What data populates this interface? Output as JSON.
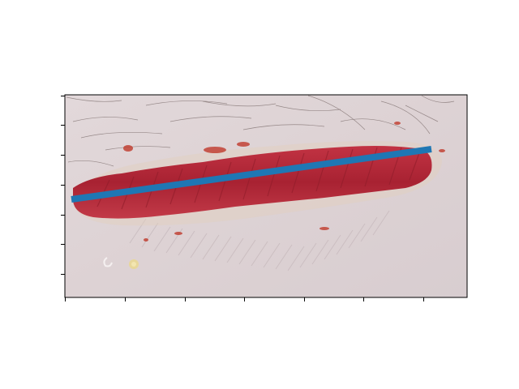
{
  "figure": {
    "background": "#ffffff",
    "skin_color": "#ddd4d6",
    "skin_shadow": "#cfc4c6",
    "wound_color": "#b8293a",
    "wound_dark": "#8f1d2a",
    "wound_light": "#d24a55",
    "overlay_line_color": "#1f77b4",
    "axis_color": "#000000"
  },
  "axes": {
    "x_ticks_count": 7,
    "y_ticks_count": 7,
    "tick_labels_shown": false
  }
}
